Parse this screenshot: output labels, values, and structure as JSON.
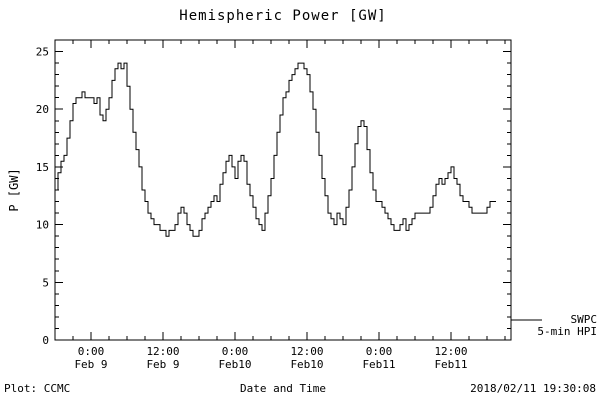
{
  "chart_data": {
    "type": "line",
    "title": "Hemispheric Power [GW]",
    "xlabel": "Date and Time",
    "ylabel": "P [GW]",
    "ylim": [
      0,
      26
    ],
    "y_ticks": [
      0,
      5,
      10,
      15,
      20,
      25
    ],
    "y_minor_step": 1,
    "xlim_hours": [
      -6,
      70
    ],
    "x_minor_step_hours": 3,
    "x_ticks": [
      {
        "hours": 0,
        "time": "0:00",
        "date": "Feb 9"
      },
      {
        "hours": 12,
        "time": "12:00",
        "date": "Feb 9"
      },
      {
        "hours": 24,
        "time": "0:00",
        "date": "Feb10"
      },
      {
        "hours": 36,
        "time": "12:00",
        "date": "Feb10"
      },
      {
        "hours": 48,
        "time": "0:00",
        "date": "Feb11"
      },
      {
        "hours": 60,
        "time": "12:00",
        "date": "Feb11"
      }
    ],
    "legend": [
      "SWPC",
      "5-min HPI"
    ],
    "line_color": "#000000",
    "series": [
      {
        "name": "SWPC 5-min HPI",
        "t_start_hours": -6,
        "t_step_hours": 0.5,
        "values": [
          13,
          14.5,
          15.5,
          16,
          17.5,
          19,
          20.5,
          21,
          21,
          21.5,
          21,
          21,
          21,
          20.5,
          21,
          19.5,
          19,
          20,
          21,
          22.5,
          23.5,
          24,
          23.5,
          24,
          22,
          20,
          18,
          16.5,
          15,
          13,
          12,
          11,
          10.5,
          10,
          10,
          9.5,
          9.5,
          9,
          9.5,
          9.5,
          10,
          11,
          11.5,
          11,
          10,
          9.5,
          9,
          9,
          9.5,
          10.5,
          11,
          11.5,
          12,
          12.5,
          12,
          13.5,
          14.5,
          15.5,
          16,
          15,
          14,
          15.5,
          16,
          15.5,
          13.5,
          12.5,
          11.5,
          10.5,
          10,
          9.5,
          11,
          12.5,
          14,
          16,
          18,
          19.5,
          21,
          21.5,
          22.5,
          23,
          23.5,
          24,
          24,
          23.5,
          23,
          21.5,
          20,
          18,
          16,
          14,
          12.5,
          11,
          10.5,
          10,
          11,
          10.5,
          10,
          11.5,
          13,
          15,
          17,
          18.5,
          19,
          18.5,
          16.5,
          14.5,
          13,
          12,
          12,
          11.5,
          11,
          10.5,
          10,
          9.5,
          9.5,
          10,
          10.5,
          9.5,
          10,
          10.5,
          11,
          11,
          11,
          11,
          11,
          11.5,
          12.5,
          13.5,
          14,
          13.5,
          14,
          14.5,
          15,
          14,
          13.5,
          12.5,
          12,
          12,
          11.5,
          11,
          11,
          11,
          11,
          11,
          11.5,
          12,
          12,
          12
        ]
      }
    ]
  },
  "footer": {
    "left": "Plot: CCMC",
    "right": "2018/02/11 19:30:08"
  }
}
